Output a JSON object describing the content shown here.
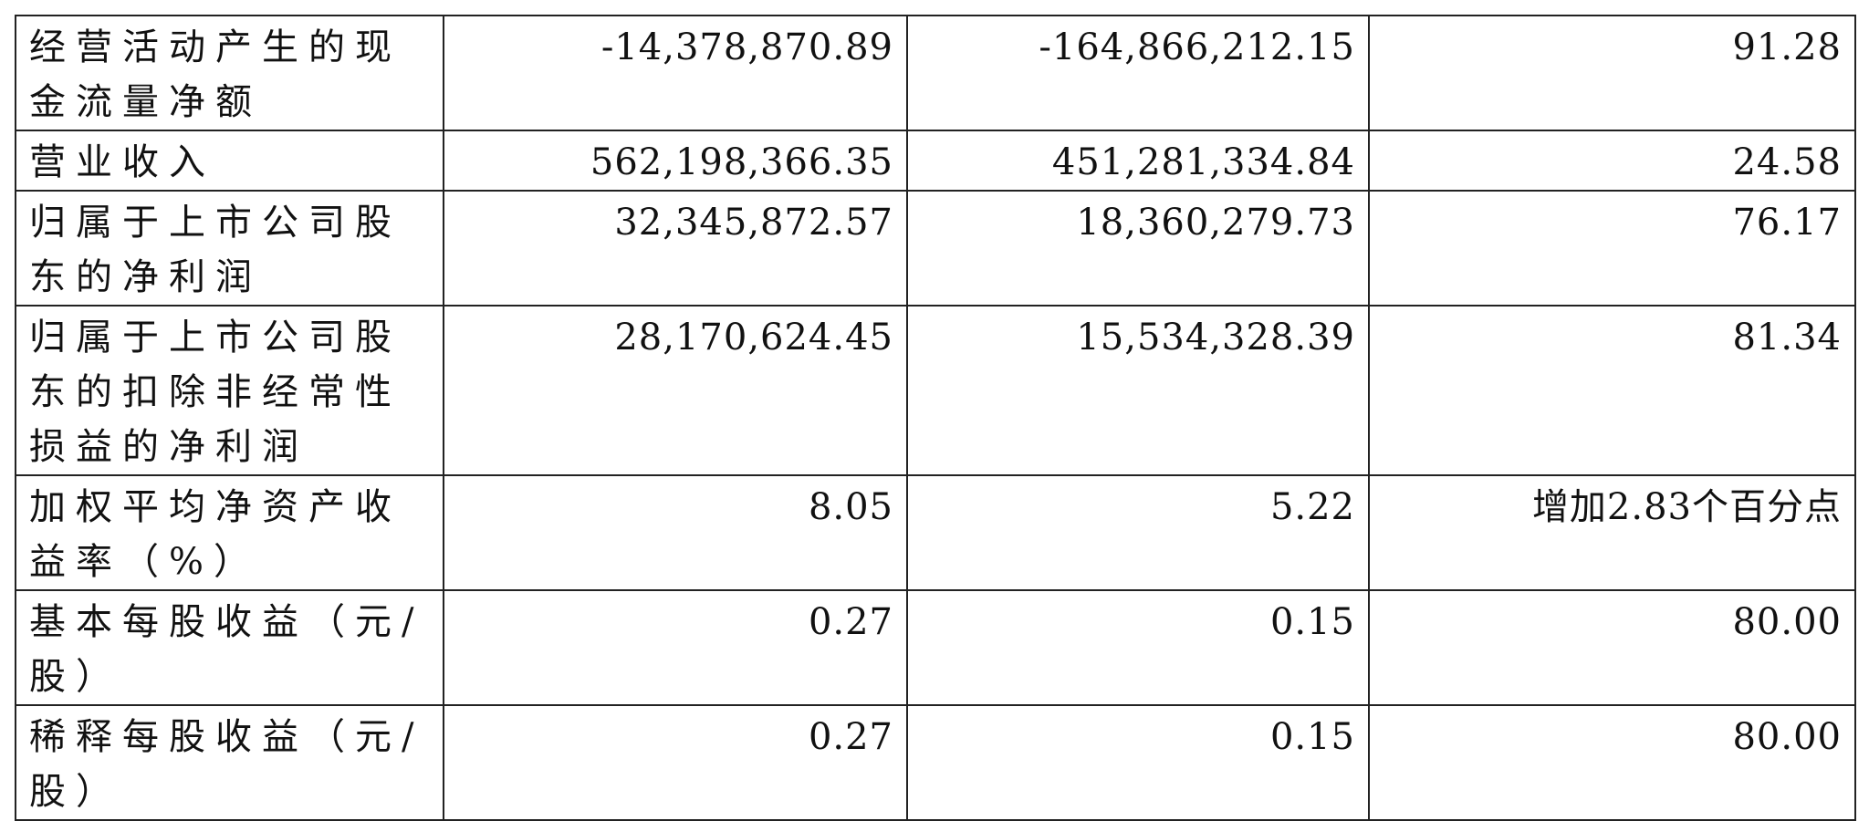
{
  "table": {
    "rows": [
      [
        "经营活动产生的现金流量净额",
        "-14,378,870.89",
        "-164,866,212.15",
        "91.28"
      ],
      [
        "营业收入",
        "562,198,366.35",
        "451,281,334.84",
        "24.58"
      ],
      [
        "归属于上市公司股东的净利润",
        "32,345,872.57",
        "18,360,279.73",
        "76.17"
      ],
      [
        "归属于上市公司股东的扣除非经常性损益的净利润",
        "28,170,624.45",
        "15,534,328.39",
        "81.34"
      ],
      [
        "加权平均净资产收益率（%）",
        "8.05",
        "5.22",
        "增加2.83个百分点"
      ],
      [
        "基本每股收益（元/股）",
        "0.27",
        "0.15",
        "80.00"
      ],
      [
        "稀释每股收益（元/股）",
        "0.27",
        "0.15",
        "80.00"
      ]
    ]
  }
}
